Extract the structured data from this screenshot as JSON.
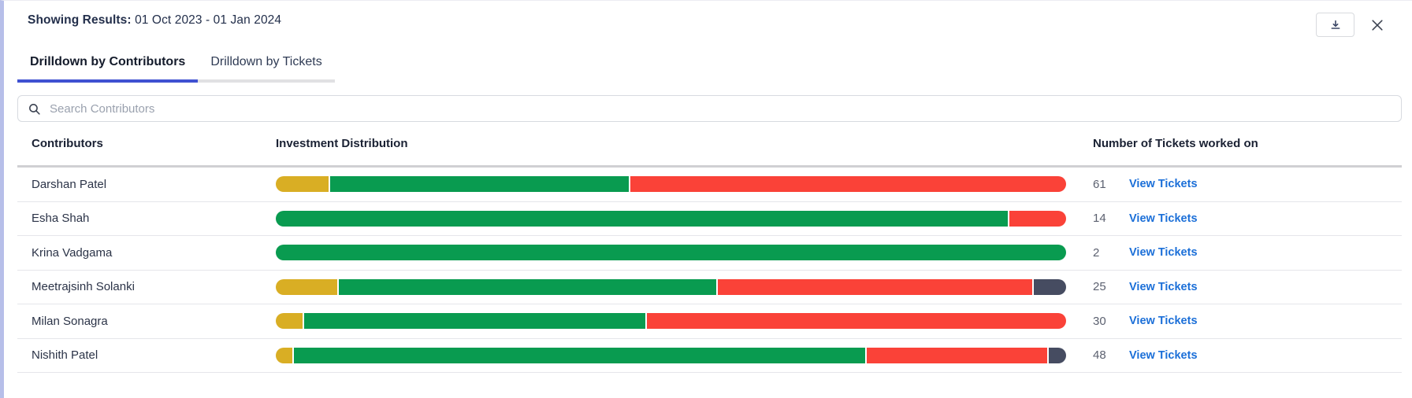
{
  "header": {
    "label": "Showing Results:",
    "date_range": "01 Oct 2023 - 01 Jan 2024"
  },
  "tabs": [
    {
      "label": "Drilldown by Contributors",
      "active": true
    },
    {
      "label": "Drilldown by Tickets",
      "active": false
    }
  ],
  "search": {
    "placeholder": "Search Contributors",
    "icon": "search-icon"
  },
  "table": {
    "columns": [
      "Contributors",
      "Investment Distribution",
      "Number of Tickets worked on"
    ],
    "view_tickets_label": "View Tickets",
    "rows": [
      {
        "name": "Darshan Patel",
        "tickets": "61",
        "segments": [
          {
            "color": "yellow",
            "pct": 6.7
          },
          {
            "color": "green",
            "pct": 37.9
          },
          {
            "color": "red",
            "pct": 55.4
          }
        ]
      },
      {
        "name": "Esha Shah",
        "tickets": "14",
        "segments": [
          {
            "color": "green",
            "pct": 92.8
          },
          {
            "color": "red",
            "pct": 7.2
          }
        ]
      },
      {
        "name": "Krina Vadgama",
        "tickets": "2",
        "segments": [
          {
            "color": "green",
            "pct": 100
          }
        ]
      },
      {
        "name": "Meetrajsinh Solanki",
        "tickets": "25",
        "segments": [
          {
            "color": "yellow",
            "pct": 7.8
          },
          {
            "color": "green",
            "pct": 48.1
          },
          {
            "color": "red",
            "pct": 40.0
          },
          {
            "color": "dark",
            "pct": 4.1
          }
        ]
      },
      {
        "name": "Milan Sonagra",
        "tickets": "30",
        "segments": [
          {
            "color": "yellow",
            "pct": 3.4
          },
          {
            "color": "green",
            "pct": 43.3
          },
          {
            "color": "red",
            "pct": 53.3
          }
        ]
      },
      {
        "name": "Nishith Patel",
        "tickets": "48",
        "segments": [
          {
            "color": "yellow",
            "pct": 2.1
          },
          {
            "color": "green",
            "pct": 72.7
          },
          {
            "color": "red",
            "pct": 23.0
          },
          {
            "color": "dark",
            "pct": 2.2
          }
        ]
      }
    ]
  },
  "colors": {
    "yellow": "#D9AE24",
    "green": "#099B50",
    "red": "#FA4238",
    "dark": "#464C61",
    "tab_accent": "#3F51D1",
    "link_blue": "#1B6FD8",
    "left_border": "#B7BFE9"
  },
  "icons": {
    "download": "download-icon",
    "close": "close-icon",
    "search": "search-icon"
  }
}
